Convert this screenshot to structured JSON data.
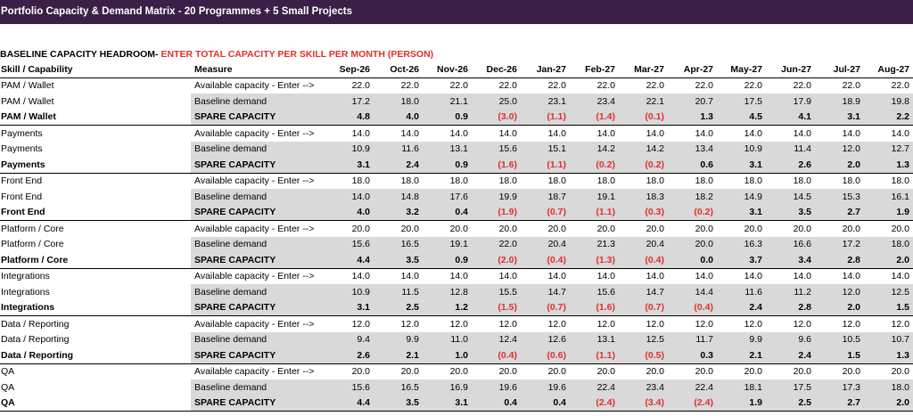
{
  "title": "Portfolio Capacity & Demand Matrix - 20 Programmes + 5 Small Projects",
  "section": {
    "label": "BASELINE CAPACITY HEADROOM- ",
    "instruction": "ENTER TOTAL CAPACITY PER SKILL PER MONTH (PERSON)"
  },
  "headers": {
    "skill": "Skill / Capability",
    "measure": "Measure",
    "months": [
      "Sep-26",
      "Oct-26",
      "Nov-26",
      "Dec-26",
      "Jan-27",
      "Feb-27",
      "Mar-27",
      "Apr-27",
      "May-27",
      "Jun-27",
      "Jul-27",
      "Aug-27"
    ]
  },
  "colors": {
    "banner": "#3b1f47",
    "negative": "#e0302a",
    "shade": "#d9d9d9"
  },
  "groups": [
    {
      "skill": "PAM / Wallet",
      "rows": [
        {
          "measure": "Available capacity - Enter -->",
          "values": [
            "22.0",
            "22.0",
            "22.0",
            "22.0",
            "22.0",
            "22.0",
            "22.0",
            "22.0",
            "22.0",
            "22.0",
            "22.0",
            "22.0"
          ]
        },
        {
          "measure": "Baseline demand",
          "values": [
            "17.2",
            "18.0",
            "21.1",
            "25.0",
            "23.1",
            "23.4",
            "22.1",
            "20.7",
            "17.5",
            "17.9",
            "18.9",
            "19.8"
          ]
        },
        {
          "measure": "SPARE CAPACITY",
          "values": [
            "4.8",
            "4.0",
            "0.9",
            "(3.0)",
            "(1.1)",
            "(1.4)",
            "(0.1)",
            "1.3",
            "4.5",
            "4.1",
            "3.1",
            "2.2"
          ]
        }
      ]
    },
    {
      "skill": "Payments",
      "rows": [
        {
          "measure": "Available capacity - Enter -->",
          "values": [
            "14.0",
            "14.0",
            "14.0",
            "14.0",
            "14.0",
            "14.0",
            "14.0",
            "14.0",
            "14.0",
            "14.0",
            "14.0",
            "14.0"
          ]
        },
        {
          "measure": "Baseline demand",
          "values": [
            "10.9",
            "11.6",
            "13.1",
            "15.6",
            "15.1",
            "14.2",
            "14.2",
            "13.4",
            "10.9",
            "11.4",
            "12.0",
            "12.7"
          ]
        },
        {
          "measure": "SPARE CAPACITY",
          "values": [
            "3.1",
            "2.4",
            "0.9",
            "(1.6)",
            "(1.1)",
            "(0.2)",
            "(0.2)",
            "0.6",
            "3.1",
            "2.6",
            "2.0",
            "1.3"
          ]
        }
      ]
    },
    {
      "skill": "Front End",
      "rows": [
        {
          "measure": "Available capacity - Enter -->",
          "values": [
            "18.0",
            "18.0",
            "18.0",
            "18.0",
            "18.0",
            "18.0",
            "18.0",
            "18.0",
            "18.0",
            "18.0",
            "18.0",
            "18.0"
          ]
        },
        {
          "measure": "Baseline demand",
          "values": [
            "14.0",
            "14.8",
            "17.6",
            "19.9",
            "18.7",
            "19.1",
            "18.3",
            "18.2",
            "14.9",
            "14.5",
            "15.3",
            "16.1"
          ]
        },
        {
          "measure": "SPARE CAPACITY",
          "values": [
            "4.0",
            "3.2",
            "0.4",
            "(1.9)",
            "(0.7)",
            "(1.1)",
            "(0.3)",
            "(0.2)",
            "3.1",
            "3.5",
            "2.7",
            "1.9"
          ]
        }
      ]
    },
    {
      "skill": "Platform / Core",
      "rows": [
        {
          "measure": "Available capacity - Enter -->",
          "values": [
            "20.0",
            "20.0",
            "20.0",
            "20.0",
            "20.0",
            "20.0",
            "20.0",
            "20.0",
            "20.0",
            "20.0",
            "20.0",
            "20.0"
          ]
        },
        {
          "measure": "Baseline demand",
          "values": [
            "15.6",
            "16.5",
            "19.1",
            "22.0",
            "20.4",
            "21.3",
            "20.4",
            "20.0",
            "16.3",
            "16.6",
            "17.2",
            "18.0"
          ]
        },
        {
          "measure": "SPARE CAPACITY",
          "values": [
            "4.4",
            "3.5",
            "0.9",
            "(2.0)",
            "(0.4)",
            "(1.3)",
            "(0.4)",
            "0.0",
            "3.7",
            "3.4",
            "2.8",
            "2.0"
          ]
        }
      ]
    },
    {
      "skill": "Integrations",
      "rows": [
        {
          "measure": "Available capacity - Enter -->",
          "values": [
            "14.0",
            "14.0",
            "14.0",
            "14.0",
            "14.0",
            "14.0",
            "14.0",
            "14.0",
            "14.0",
            "14.0",
            "14.0",
            "14.0"
          ]
        },
        {
          "measure": "Baseline demand",
          "values": [
            "10.9",
            "11.5",
            "12.8",
            "15.5",
            "14.7",
            "15.6",
            "14.7",
            "14.4",
            "11.6",
            "11.2",
            "12.0",
            "12.5"
          ]
        },
        {
          "measure": "SPARE CAPACITY",
          "values": [
            "3.1",
            "2.5",
            "1.2",
            "(1.5)",
            "(0.7)",
            "(1.6)",
            "(0.7)",
            "(0.4)",
            "2.4",
            "2.8",
            "2.0",
            "1.5"
          ]
        }
      ]
    },
    {
      "skill": "Data / Reporting",
      "rows": [
        {
          "measure": "Available capacity - Enter -->",
          "values": [
            "12.0",
            "12.0",
            "12.0",
            "12.0",
            "12.0",
            "12.0",
            "12.0",
            "12.0",
            "12.0",
            "12.0",
            "12.0",
            "12.0"
          ]
        },
        {
          "measure": "Baseline demand",
          "values": [
            "9.4",
            "9.9",
            "11.0",
            "12.4",
            "12.6",
            "13.1",
            "12.5",
            "11.7",
            "9.9",
            "9.6",
            "10.5",
            "10.7"
          ]
        },
        {
          "measure": "SPARE CAPACITY",
          "values": [
            "2.6",
            "2.1",
            "1.0",
            "(0.4)",
            "(0.6)",
            "(1.1)",
            "(0.5)",
            "0.3",
            "2.1",
            "2.4",
            "1.5",
            "1.3"
          ]
        }
      ]
    },
    {
      "skill": "QA",
      "rows": [
        {
          "measure": "Available capacity - Enter -->",
          "values": [
            "20.0",
            "20.0",
            "20.0",
            "20.0",
            "20.0",
            "20.0",
            "20.0",
            "20.0",
            "20.0",
            "20.0",
            "20.0",
            "20.0"
          ]
        },
        {
          "measure": "Baseline demand",
          "values": [
            "15.6",
            "16.5",
            "16.9",
            "19.6",
            "19.6",
            "22.4",
            "23.4",
            "22.4",
            "18.1",
            "17.5",
            "17.3",
            "18.0"
          ]
        },
        {
          "measure": "SPARE CAPACITY",
          "values": [
            "4.4",
            "3.5",
            "3.1",
            "0.4",
            "0.4",
            "(2.4)",
            "(3.4)",
            "(2.4)",
            "1.9",
            "2.5",
            "2.7",
            "2.0"
          ]
        }
      ]
    }
  ]
}
